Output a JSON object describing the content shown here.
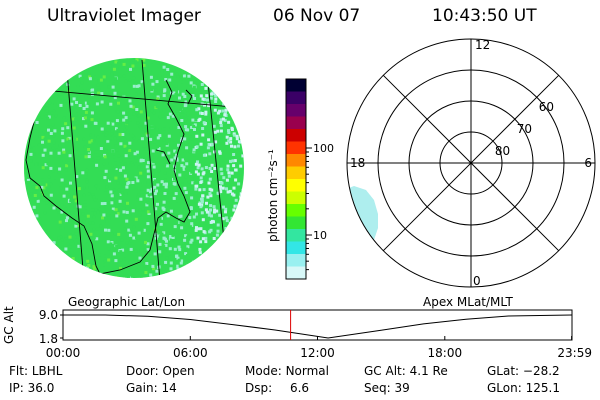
{
  "header": {
    "instrument": "Ultraviolet Imager",
    "date": "06 Nov 07",
    "time": "10:43:50 UT"
  },
  "colorbar": {
    "unit_label": "photon cm⁻²s⁻¹",
    "ticks": [
      {
        "label": "100",
        "value": 100
      },
      {
        "label": "10",
        "value": 10
      }
    ],
    "colors": [
      "#000033",
      "#3a0066",
      "#66006b",
      "#99004d",
      "#cc0000",
      "#ff3300",
      "#ff8800",
      "#ffcc00",
      "#ffff00",
      "#ccff00",
      "#66ff00",
      "#33e633",
      "#33e6a0",
      "#33e6e6",
      "#99f0f0",
      "#d8f8f8"
    ]
  },
  "geo_map": {
    "label": "Geographic Lat/Lon",
    "colors": {
      "dominant": "#33dd55",
      "secondary": "#99eecc",
      "faint": "#ccf3f3"
    }
  },
  "polar_plot": {
    "label": "Apex MLat/MLT",
    "mlt_labels": [
      {
        "text": "12",
        "hour": 12
      },
      {
        "text": "18",
        "hour": 18
      },
      {
        "text": "6",
        "hour": 6
      },
      {
        "text": "0",
        "hour": 0
      }
    ],
    "lat_labels": [
      {
        "text": "60",
        "lat": 60
      },
      {
        "text": "70",
        "lat": 70
      },
      {
        "text": "80",
        "lat": 80
      }
    ],
    "coverage_color": "#aeeeee"
  },
  "orbit": {
    "axis_label": "GC Alt",
    "y_ticks": [
      "9.0",
      "1.8"
    ],
    "x_ticks": [
      {
        "label": "00:00",
        "hour": 0
      },
      {
        "label": "06:00",
        "hour": 6
      },
      {
        "label": "12:00",
        "hour": 12
      },
      {
        "label": "18:00",
        "hour": 18
      },
      {
        "label": "23:59",
        "hour": 23.98
      }
    ],
    "current_time_hour": 10.73,
    "marker_color": "#dd0000",
    "profile": {
      "hours": [
        0,
        2,
        4,
        6,
        8,
        10,
        12.5,
        15,
        17,
        19,
        21,
        23.98
      ],
      "gc_alt": [
        9.0,
        9.0,
        8.6,
        7.6,
        6.0,
        4.3,
        1.8,
        4.2,
        6.2,
        7.7,
        8.7,
        9.0
      ]
    }
  },
  "status": {
    "flt": {
      "label": "Flt:",
      "value": "LBHL"
    },
    "door": {
      "label": "Door:",
      "value": "Open"
    },
    "mode": {
      "label": "Mode:",
      "value": "Normal"
    },
    "gc_alt": {
      "label": "GC Alt:",
      "value": "4.1 Re"
    },
    "glat": {
      "label": "GLat:",
      "value": "−28.2"
    },
    "ip": {
      "label": "IP:",
      "value": "36.0"
    },
    "gain": {
      "label": "Gain:",
      "value": "14"
    },
    "dsp": {
      "label": "Dsp:",
      "value": "6.6"
    },
    "seq": {
      "label": "Seq:",
      "value": "39"
    },
    "glon": {
      "label": "GLon:",
      "value": "125.1"
    }
  }
}
